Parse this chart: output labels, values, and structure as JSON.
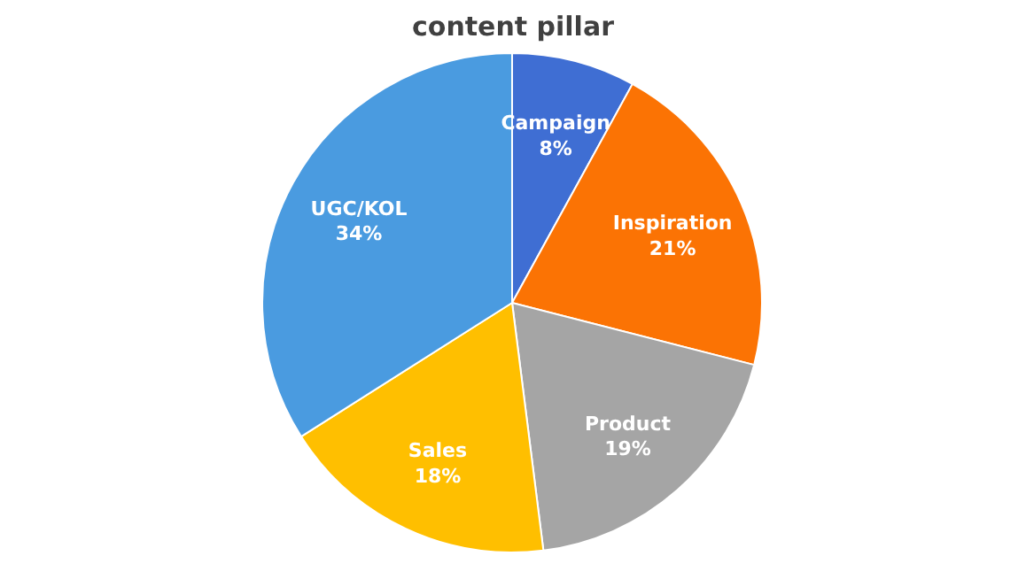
{
  "chart_data": {
    "type": "pie",
    "title": "content pillar",
    "categories": [
      "Campaign",
      "Inspiration",
      "Product",
      "Sales",
      "UGC/KOL"
    ],
    "values": [
      8,
      21,
      19,
      18,
      34
    ],
    "colors": [
      "#3f6ed3",
      "#fb7304",
      "#a5a5a5",
      "#ffbf00",
      "#4a9be0"
    ],
    "value_labels": [
      "8%",
      "21%",
      "19%",
      "18%",
      "34%"
    ]
  }
}
